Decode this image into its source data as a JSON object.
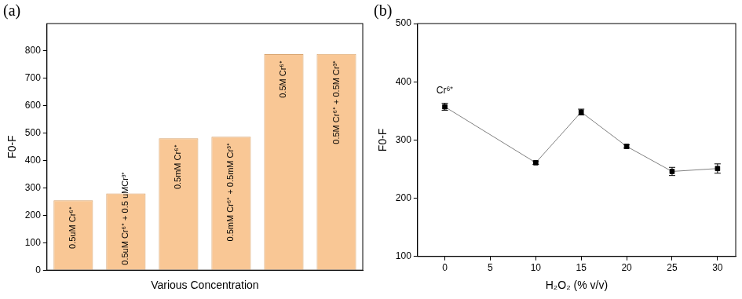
{
  "chart_data": [
    {
      "type": "bar",
      "title": "(a)",
      "x_label": "Various Concentration",
      "y_label": "F0-F",
      "categories": [
        "0.5uM Cr⁶⁺",
        "0.5uM Cr⁶⁺ + 0.5 uMCr³⁺",
        "0.5mM Cr⁶⁺",
        "0.5mM Cr⁶⁺ + 0.5mM Cr³⁺",
        "0.5M Cr⁶⁺",
        "0.5M Cr⁶⁺ + 0.5M Cr³⁺"
      ],
      "values": [
        255,
        280,
        481,
        487,
        788,
        789
      ],
      "color": "#f9c795",
      "ylim": [
        0,
        900
      ],
      "yticks": [
        0,
        100,
        200,
        300,
        400,
        500,
        600,
        700,
        800
      ],
      "grid": false,
      "tick_labels": "y"
    },
    {
      "type": "line",
      "title": "(b)",
      "x_label": "H₂O₂ (% v/v)",
      "y_label": "F0-F",
      "x": [
        0,
        10,
        15,
        20,
        25,
        30
      ],
      "values": [
        357,
        261,
        348,
        289,
        246,
        251
      ],
      "errors": [
        6,
        3,
        5,
        3,
        7,
        8
      ],
      "color": "#000000",
      "marker": "square",
      "xlim": [
        -3,
        32
      ],
      "xticks": [
        0,
        5,
        10,
        15,
        20,
        25,
        30
      ],
      "ylim": [
        100,
        500
      ],
      "yticks": [
        100,
        200,
        300,
        400,
        500
      ],
      "grid": false,
      "annotations": [
        {
          "text": "Cr⁶⁺",
          "x": 0,
          "y": 357
        }
      ]
    }
  ]
}
